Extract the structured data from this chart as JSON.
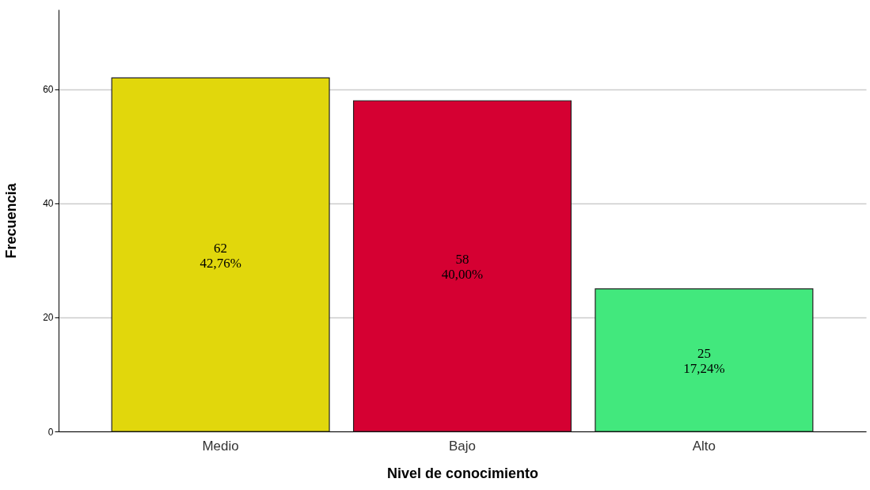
{
  "chart_data": {
    "type": "bar",
    "xlabel": "Nivel de conocimiento",
    "ylabel": "Frecuencia",
    "categories": [
      "Medio",
      "Bajo",
      "Alto"
    ],
    "values": [
      62,
      58,
      25
    ],
    "colors": [
      "#e1d70c",
      "#d50032",
      "#42e87d"
    ],
    "value_labels": [
      "62\n42,76%",
      "58\n40,00%",
      "25\n17,24%"
    ],
    "ylim": [
      0,
      74
    ],
    "yticks": [
      0,
      20,
      40,
      60
    ],
    "grid": "y",
    "legend": false
  }
}
